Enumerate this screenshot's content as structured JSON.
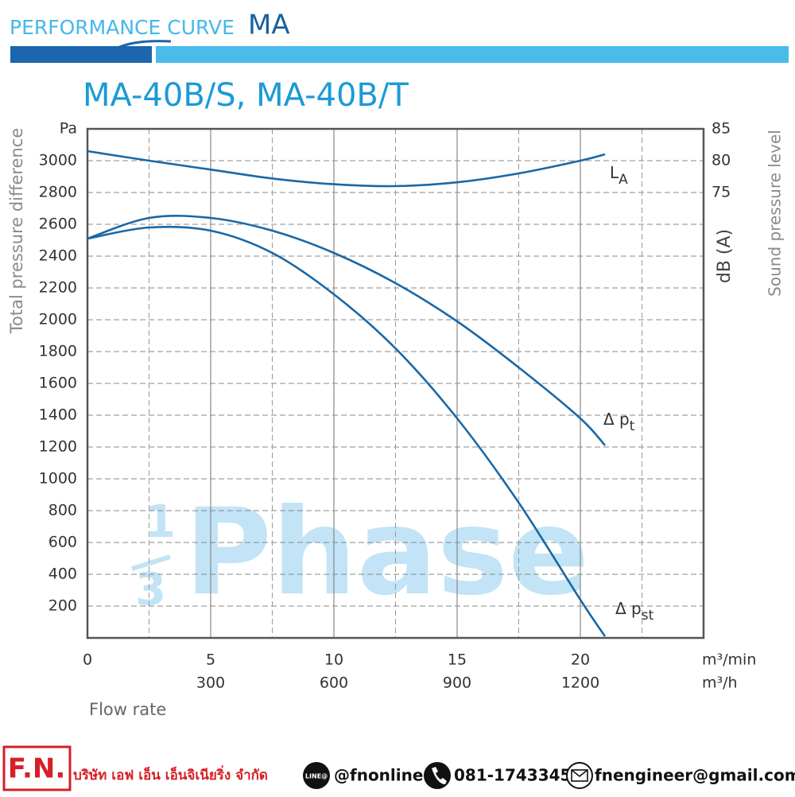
{
  "header": {
    "title": "PERFORMANCE CURVE",
    "model_family": "MA"
  },
  "chart_data": {
    "type": "line",
    "title": "MA-40B/S, MA-40B/T",
    "ylabel": "Total pressure difference",
    "y_unit": "Pa",
    "y2label": "dB (A)",
    "y2label_secondary": "Sound pressure level",
    "xlabel": "Flow rate",
    "x_unit": "m³/min",
    "x2_unit": "m³/h",
    "x": [
      0,
      2.5,
      5,
      7.5,
      10,
      12.5,
      15,
      17.5,
      20,
      21
    ],
    "xlim": [
      0,
      25
    ],
    "xticks": [
      0,
      5,
      10,
      15,
      20
    ],
    "x_minor_grid": [
      2.5,
      7.5,
      12.5,
      17.5,
      22.5
    ],
    "x2lim": [
      0,
      1500
    ],
    "x2ticks": [
      300,
      600,
      900,
      1200
    ],
    "ylim": [
      0,
      3200
    ],
    "yticks": [
      200,
      400,
      600,
      800,
      1000,
      1200,
      1400,
      1600,
      1800,
      2000,
      2200,
      2400,
      2600,
      2800,
      3000
    ],
    "y2lim": [
      5,
      85
    ],
    "y2ticks": [
      75,
      80,
      85
    ],
    "grid": true,
    "series": [
      {
        "name": "L",
        "subscript": "A",
        "color": "#1a68a6",
        "axis": "y2",
        "values": [
          81.5,
          80,
          78.6,
          77.2,
          76.3,
          76,
          76.6,
          78,
          80,
          81
        ]
      },
      {
        "name": "Δ p",
        "subscript": "t",
        "color": "#1a68a6",
        "values": [
          2510,
          2640,
          2640,
          2560,
          2420,
          2230,
          1990,
          1700,
          1380,
          1210
        ]
      },
      {
        "name": "Δ p",
        "subscript": "st",
        "color": "#1a68a6",
        "values": [
          2510,
          2580,
          2560,
          2420,
          2160,
          1820,
          1380,
          850,
          240,
          10
        ]
      }
    ],
    "watermark": {
      "numerator": "1",
      "denominator": "3",
      "text": "Phase"
    }
  },
  "footer": {
    "logo": "F.N.",
    "company": "บริษัท เอฟ เอ็น เอ็นจิเนียริ่ง จำกัด",
    "line_badge": "LINE@",
    "line_id": "@fnonline",
    "phone": "081-1743345",
    "email": "fnengineer@gmail.com"
  }
}
